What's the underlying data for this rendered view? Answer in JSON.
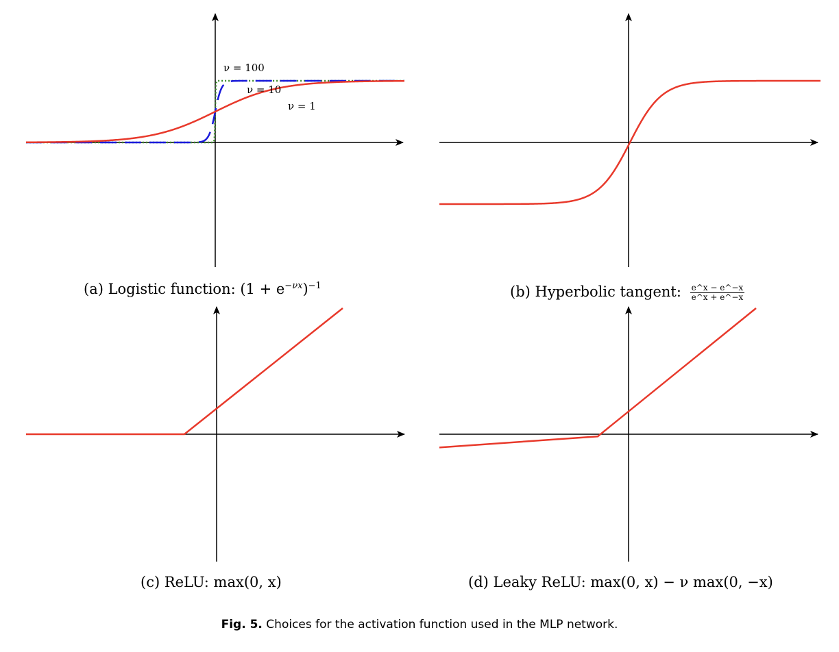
{
  "chart_data": [
    {
      "type": "line",
      "caption": "(a) Logistic function: (1 + e^{−νx})^{−1}",
      "caption_parts": {
        "prefix": "(a) Logistic function: ",
        "formula": "(1 + e",
        "sup1": "−νx",
        "formula2": ")",
        "sup2": "−1"
      },
      "series": [
        {
          "name": "ν = 1",
          "function": "1/(1+exp(-x))",
          "color": "#e8392b",
          "style": "solid"
        },
        {
          "name": "ν = 10",
          "function": "1/(1+exp(-10x))",
          "color": "#1a1adb",
          "style": "dashed"
        },
        {
          "name": "ν = 100",
          "function": "1/(1+exp(-100x))",
          "color": "#3a8a2a",
          "style": "dotted"
        }
      ],
      "xlim": [
        -6,
        6
      ],
      "ylim": [
        -2,
        2
      ]
    },
    {
      "type": "line",
      "caption_prefix": "(b) Hyperbolic tangent: ",
      "caption_num": "e^x − e^−x",
      "caption_den": "e^x + e^−x",
      "series": [
        {
          "function": "tanh(x)",
          "color": "#e8392b"
        }
      ],
      "xlim": [
        -6,
        6
      ],
      "ylim": [
        -2,
        2
      ]
    },
    {
      "type": "line",
      "caption": "(c) ReLU: max(0, x)",
      "series": [
        {
          "function": "max(0,x)",
          "color": "#e8392b"
        }
      ],
      "xlim": [
        -6,
        6
      ],
      "ylim": [
        -4,
        4
      ]
    },
    {
      "type": "line",
      "caption": "(d) Leaky ReLU: max(0, x) − ν max(0, −x)",
      "series": [
        {
          "function": "max(0,x) - 0.07*max(0,-x)",
          "color": "#e8392b"
        }
      ],
      "xlim": [
        -6,
        6
      ],
      "ylim": [
        -4,
        4
      ]
    }
  ],
  "labels": {
    "nu100": "ν = 100",
    "nu10": "ν = 10",
    "nu1": "ν = 1"
  },
  "figure_caption": {
    "label": "Fig. 5.",
    "text": " Choices for the activation function used in the MLP network."
  }
}
